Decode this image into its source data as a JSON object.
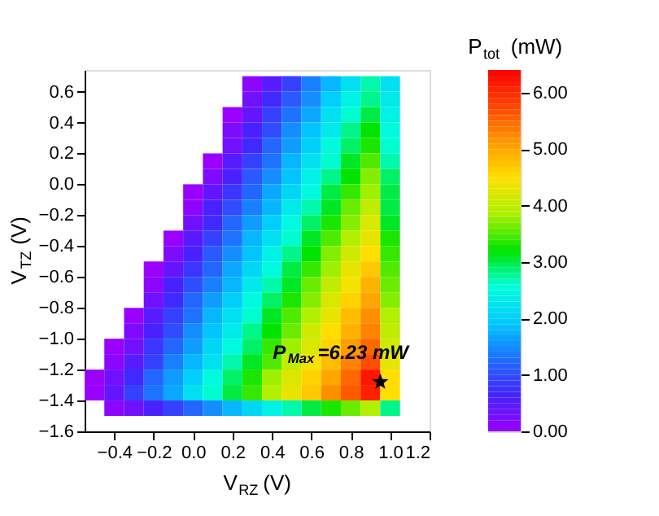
{
  "chart_data": {
    "type": "heatmap",
    "xlabel": "V$_{RZ}$ (V)",
    "ylabel": "V$_{TZ}$ (V)",
    "clabel": "P$_{tot}$ (mW)",
    "xlim": [
      -0.55,
      1.2
    ],
    "xticks": [
      {
        "value": -0.4,
        "label": "−0.4"
      },
      {
        "value": -0.2,
        "label": "−0.2"
      },
      {
        "value": 0,
        "label": "0.0"
      },
      0.2,
      0.4,
      0.6,
      0.8,
      {
        "value": 1,
        "label": "1.0"
      },
      1.2
    ],
    "ylim": [
      -1.6,
      0.74
    ],
    "yticks": [
      {
        "value": -1.6,
        "label": "−1.6"
      },
      {
        "value": -1.4,
        "label": "−1.4"
      },
      {
        "value": -1.2,
        "label": "−1.2"
      },
      {
        "value": -1,
        "label": "−1.0"
      },
      {
        "value": -0.8,
        "label": "−0.8"
      },
      {
        "value": -0.6,
        "label": "−0.6"
      },
      {
        "value": -0.4,
        "label": "−0.4"
      },
      {
        "value": -0.2,
        "label": "−0.2"
      },
      {
        "value": 0,
        "label": "0.0"
      },
      0.2,
      0.4,
      0.6
    ],
    "clim": [
      0,
      6.4
    ],
    "cticks": [
      {
        "value": 0,
        "label": "0.00"
      },
      {
        "value": 1,
        "label": "1.00"
      },
      {
        "value": 2,
        "label": "2.00"
      },
      {
        "value": 3,
        "label": "3.00"
      },
      {
        "value": 4,
        "label": "4.00"
      },
      {
        "value": 5,
        "label": "5.00"
      },
      {
        "value": 6,
        "label": "6.00"
      }
    ],
    "colors": [
      "#9900ff",
      "#4422ff",
      "#1e6fff",
      "#00c8ff",
      "#00ffdd",
      "#00e400",
      "#aaf000",
      "#ffe000",
      "#ff9a00",
      "#ff4400",
      "#ff0000"
    ],
    "marker": "star",
    "annotations": [
      {
        "text": "P$_{Max}$=6.23 mW",
        "x": 0.95,
        "y": -1.28
      }
    ],
    "x": [
      -0.5,
      -0.4,
      -0.3,
      -0.2,
      -0.1,
      0.0,
      0.1,
      0.2,
      0.3,
      0.4,
      0.5,
      0.6,
      0.7,
      0.8,
      0.9,
      1.0
    ],
    "y": [
      0.65,
      0.55,
      0.45,
      0.35,
      0.25,
      0.15,
      0.05,
      -0.05,
      -0.15,
      -0.25,
      -0.35,
      -0.45,
      -0.55,
      -0.65,
      -0.75,
      -0.85,
      -0.95,
      -1.05,
      -1.15,
      -1.25,
      -1.35,
      -1.45
    ],
    "cells": [
      [
        null,
        null,
        null,
        null,
        null,
        null,
        null,
        null,
        0.1,
        0.5,
        0.9,
        1.4,
        1.8,
        2.2,
        2.7,
        2.2
      ],
      [
        null,
        null,
        null,
        null,
        null,
        null,
        null,
        null,
        0.3,
        0.7,
        1.1,
        1.5,
        2.0,
        2.4,
        2.8,
        2.3
      ],
      [
        null,
        null,
        null,
        null,
        null,
        null,
        null,
        0.0,
        0.4,
        0.9,
        1.3,
        1.7,
        2.2,
        2.6,
        3.0,
        2.4
      ],
      [
        null,
        null,
        null,
        null,
        null,
        null,
        null,
        0.2,
        0.6,
        1.0,
        1.5,
        1.9,
        2.3,
        2.8,
        3.2,
        2.5
      ],
      [
        null,
        null,
        null,
        null,
        null,
        null,
        null,
        0.3,
        0.7,
        1.2,
        1.6,
        2.0,
        2.5,
        2.9,
        3.3,
        2.6
      ],
      [
        null,
        null,
        null,
        null,
        null,
        null,
        0.0,
        0.5,
        0.9,
        1.3,
        1.8,
        2.2,
        2.6,
        3.1,
        3.5,
        2.7
      ],
      [
        null,
        null,
        null,
        null,
        null,
        null,
        0.2,
        0.6,
        1.1,
        1.5,
        1.9,
        2.4,
        2.8,
        3.2,
        3.7,
        2.9
      ],
      [
        null,
        null,
        null,
        null,
        null,
        0.0,
        0.4,
        0.8,
        1.2,
        1.7,
        2.1,
        2.5,
        3.0,
        3.4,
        3.8,
        3.0
      ],
      [
        null,
        null,
        null,
        null,
        null,
        0.1,
        0.6,
        1.0,
        1.4,
        1.8,
        2.3,
        2.7,
        3.1,
        3.6,
        4.0,
        3.0
      ],
      [
        null,
        null,
        null,
        null,
        null,
        0.3,
        0.7,
        1.2,
        1.6,
        2.0,
        2.5,
        2.9,
        3.3,
        3.7,
        4.2,
        3.1
      ],
      [
        null,
        null,
        null,
        null,
        0.0,
        0.5,
        0.9,
        1.3,
        1.8,
        2.2,
        2.6,
        3.1,
        3.5,
        3.9,
        4.3,
        3.3
      ],
      [
        null,
        null,
        null,
        null,
        0.2,
        0.6,
        1.1,
        1.5,
        1.9,
        2.4,
        2.8,
        3.2,
        3.7,
        4.1,
        4.5,
        3.4
      ],
      [
        null,
        null,
        null,
        0.0,
        0.4,
        0.8,
        1.2,
        1.7,
        2.1,
        2.5,
        3.0,
        3.4,
        3.8,
        4.3,
        4.7,
        3.5
      ],
      [
        null,
        null,
        null,
        0.1,
        0.6,
        1.0,
        1.4,
        1.8,
        2.3,
        2.7,
        3.1,
        3.6,
        4.0,
        4.4,
        4.9,
        3.6
      ],
      [
        null,
        null,
        null,
        0.3,
        0.7,
        1.2,
        1.6,
        2.0,
        2.5,
        2.9,
        3.3,
        3.7,
        4.2,
        4.6,
        5.0,
        3.7
      ],
      [
        null,
        null,
        0.0,
        0.5,
        0.9,
        1.3,
        1.8,
        2.2,
        2.6,
        3.1,
        3.5,
        3.9,
        4.3,
        4.8,
        5.2,
        3.9
      ],
      [
        null,
        null,
        0.2,
        0.6,
        1.0,
        1.5,
        1.9,
        2.3,
        2.8,
        3.2,
        3.6,
        4.1,
        4.5,
        4.9,
        5.3,
        4.0
      ],
      [
        null,
        0.0,
        0.3,
        0.8,
        1.2,
        1.6,
        2.1,
        2.5,
        2.9,
        3.4,
        3.8,
        4.2,
        4.6,
        5.1,
        5.5,
        4.1
      ],
      [
        null,
        0.1,
        0.5,
        0.9,
        1.4,
        1.8,
        2.2,
        2.7,
        3.1,
        3.5,
        4.0,
        4.4,
        4.8,
        5.3,
        5.7,
        4.3
      ],
      [
        0.0,
        0.3,
        0.7,
        1.2,
        1.6,
        2.0,
        2.5,
        2.9,
        3.3,
        3.8,
        4.2,
        4.6,
        5.0,
        5.5,
        6.2,
        4.5
      ],
      [
        0.0,
        0.4,
        0.9,
        1.3,
        1.7,
        2.2,
        2.6,
        3.0,
        3.4,
        3.9,
        4.3,
        4.7,
        5.2,
        5.6,
        6.1,
        4.5
      ],
      [
        null,
        0.1,
        0.3,
        0.6,
        0.9,
        1.2,
        1.5,
        1.8,
        2.1,
        2.4,
        2.7,
        3.0,
        3.3,
        3.6,
        3.9,
        2.8
      ]
    ]
  }
}
